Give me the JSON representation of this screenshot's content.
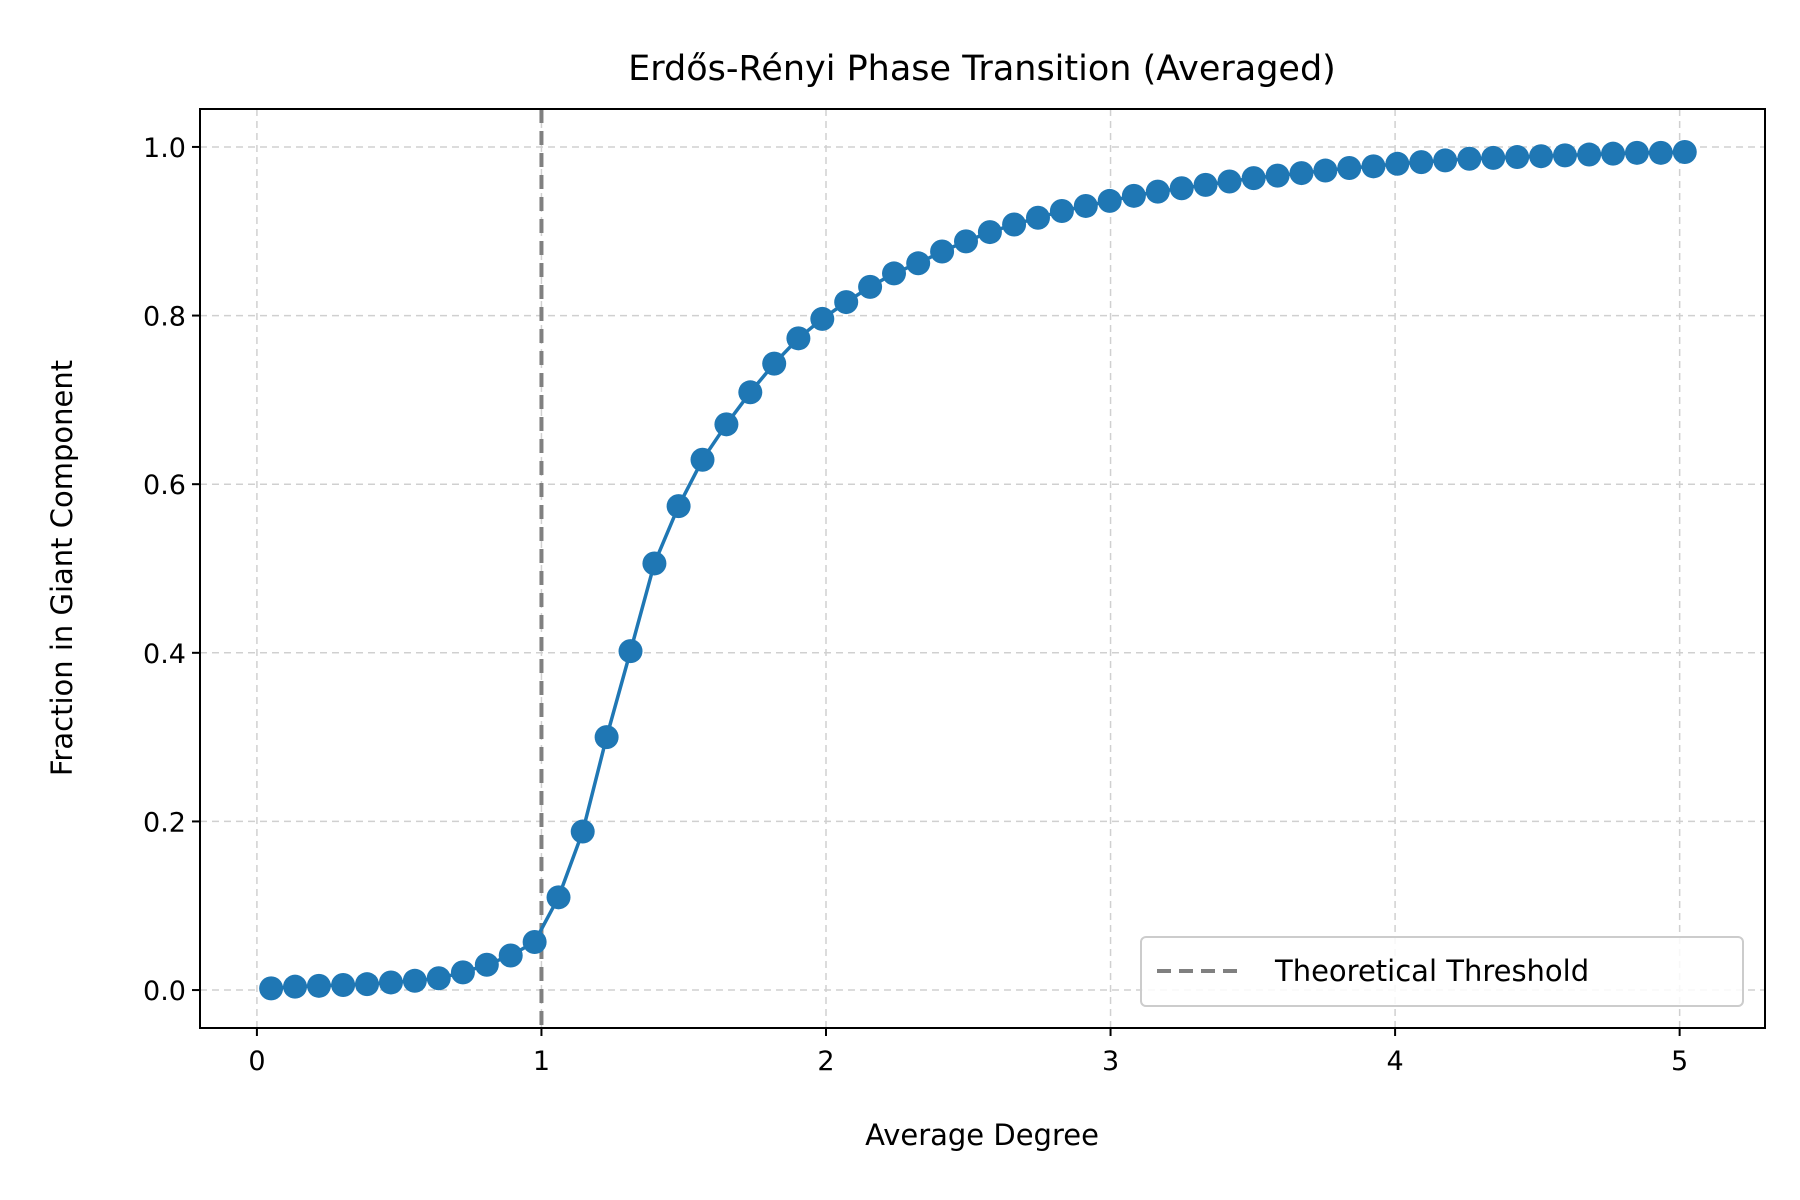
{
  "chart_data": {
    "type": "line",
    "title": "Erdős-Rényi Phase Transition (Averaged)",
    "xlabel": "Average Degree",
    "ylabel": "Fraction in Giant Component",
    "xlim": [
      -0.2,
      5.3
    ],
    "ylim": [
      -0.045,
      1.045
    ],
    "xticks": [
      0,
      1,
      2,
      3,
      4,
      5
    ],
    "yticks": [
      0.0,
      0.2,
      0.4,
      0.6,
      0.8,
      1.0
    ],
    "xtick_labels": [
      "0",
      "1",
      "2",
      "3",
      "4",
      "5"
    ],
    "ytick_labels": [
      "0.0",
      "0.2",
      "0.4",
      "0.6",
      "0.8",
      "1.0"
    ],
    "grid": true,
    "legend_position": "lower-right",
    "series": [
      {
        "color": "#1f77b4",
        "marker": "circle",
        "x": [
          0.05,
          0.134,
          0.218,
          0.303,
          0.387,
          0.471,
          0.555,
          0.639,
          0.724,
          0.808,
          0.892,
          0.976,
          1.06,
          1.145,
          1.229,
          1.313,
          1.397,
          1.482,
          1.566,
          1.65,
          1.734,
          1.818,
          1.903,
          1.987,
          2.071,
          2.155,
          2.239,
          2.324,
          2.408,
          2.492,
          2.576,
          2.661,
          2.745,
          2.829,
          2.913,
          2.997,
          3.082,
          3.166,
          3.25,
          3.334,
          3.418,
          3.503,
          3.587,
          3.671,
          3.755,
          3.839,
          3.924,
          4.008,
          4.092,
          4.176,
          4.261,
          4.345,
          4.429,
          4.513,
          4.597,
          4.682,
          4.766,
          4.85,
          4.934,
          5.018
        ],
        "y": [
          0.002,
          0.004,
          0.005,
          0.006,
          0.007,
          0.009,
          0.011,
          0.014,
          0.021,
          0.03,
          0.041,
          0.057,
          0.11,
          0.188,
          0.3,
          0.402,
          0.506,
          0.574,
          0.629,
          0.671,
          0.709,
          0.743,
          0.773,
          0.796,
          0.816,
          0.834,
          0.85,
          0.862,
          0.876,
          0.888,
          0.899,
          0.908,
          0.916,
          0.924,
          0.93,
          0.936,
          0.942,
          0.947,
          0.951,
          0.955,
          0.959,
          0.963,
          0.966,
          0.969,
          0.972,
          0.975,
          0.977,
          0.98,
          0.982,
          0.984,
          0.986,
          0.987,
          0.988,
          0.989,
          0.99,
          0.991,
          0.992,
          0.993,
          0.993,
          0.994
        ]
      }
    ],
    "reference_lines": [
      {
        "name": "Theoretical Threshold",
        "orientation": "vertical",
        "x": 1.0,
        "color": "#808080",
        "style": "dashed"
      }
    ],
    "colors": {
      "series": "#1f77b4",
      "threshold": "#808080",
      "grid": "#d0d0d0"
    }
  }
}
